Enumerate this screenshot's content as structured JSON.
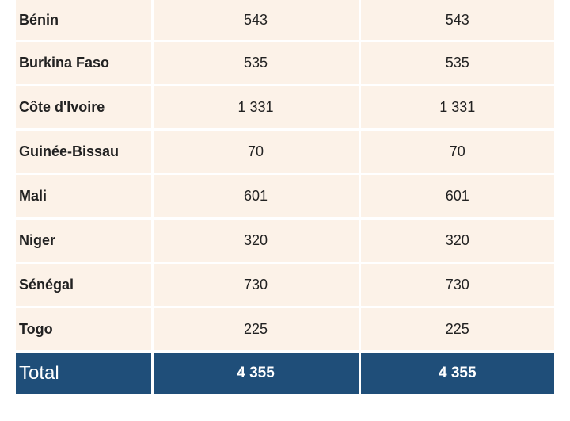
{
  "table": {
    "rows": [
      {
        "country": "Bénin",
        "col1": "543",
        "col2": "543"
      },
      {
        "country": "Burkina Faso",
        "col1": "535",
        "col2": "535"
      },
      {
        "country": "Côte d'Ivoire",
        "col1": "1 331",
        "col2": "1 331"
      },
      {
        "country": "Guinée-Bissau",
        "col1": "70",
        "col2": "70"
      },
      {
        "country": "Mali",
        "col1": "601",
        "col2": "601"
      },
      {
        "country": "Niger",
        "col1": "320",
        "col2": "320"
      },
      {
        "country": "Sénégal",
        "col1": "730",
        "col2": "730"
      },
      {
        "country": "Togo",
        "col1": "225",
        "col2": "225"
      }
    ],
    "total": {
      "label": "Total",
      "col1": "4 355",
      "col2": "4 355"
    }
  },
  "colors": {
    "row_background": "#fcf2e8",
    "total_background": "#1f4e79",
    "total_text": "#ffffff"
  }
}
